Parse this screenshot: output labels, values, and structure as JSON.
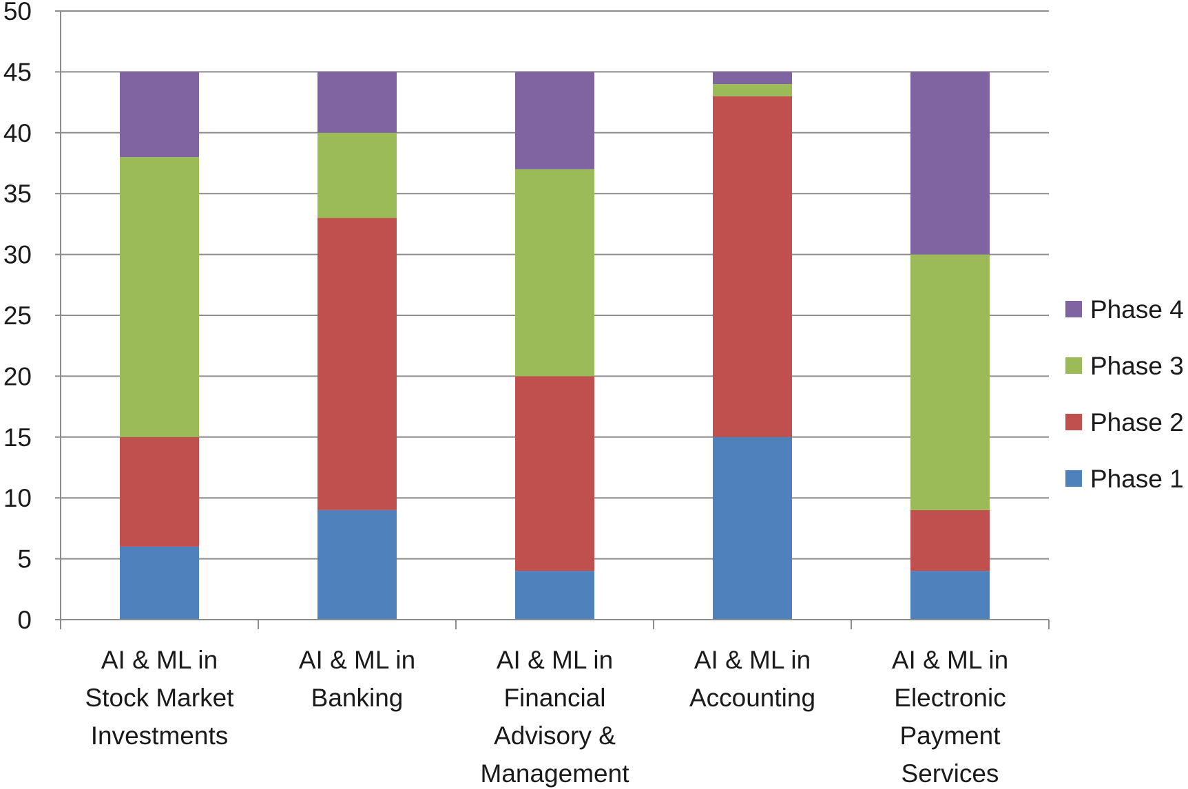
{
  "chart_data": {
    "type": "bar",
    "stacked": true,
    "title": "",
    "xlabel": "",
    "ylabel": "",
    "ylim": [
      0,
      50
    ],
    "yticks": [
      0,
      5,
      10,
      15,
      20,
      25,
      30,
      35,
      40,
      45,
      50
    ],
    "grid": "horizontal",
    "legend_position": "right",
    "categories": [
      [
        "AI & ML in",
        "Stock Market",
        "Investments"
      ],
      [
        "AI & ML in",
        "Banking"
      ],
      [
        "AI & ML in",
        "Financial",
        "Advisory &",
        "Management"
      ],
      [
        "AI & ML in",
        "Accounting"
      ],
      [
        "AI  & ML in",
        "Electronic",
        "Payment",
        "Services"
      ]
    ],
    "series": [
      {
        "name": "Phase 1",
        "color": "#4F81BD",
        "values": [
          6,
          9,
          4,
          15,
          4
        ]
      },
      {
        "name": "Phase 2",
        "color": "#C0504D",
        "values": [
          9,
          24,
          16,
          28,
          5
        ]
      },
      {
        "name": "Phase 3",
        "color": "#9BBB59",
        "values": [
          23,
          7,
          17,
          1,
          21
        ]
      },
      {
        "name": "Phase 4",
        "color": "#8064A2",
        "values": [
          7,
          5,
          8,
          1,
          15
        ]
      }
    ],
    "legend_order": [
      "Phase 4",
      "Phase 3",
      "Phase 2",
      "Phase 1"
    ]
  }
}
